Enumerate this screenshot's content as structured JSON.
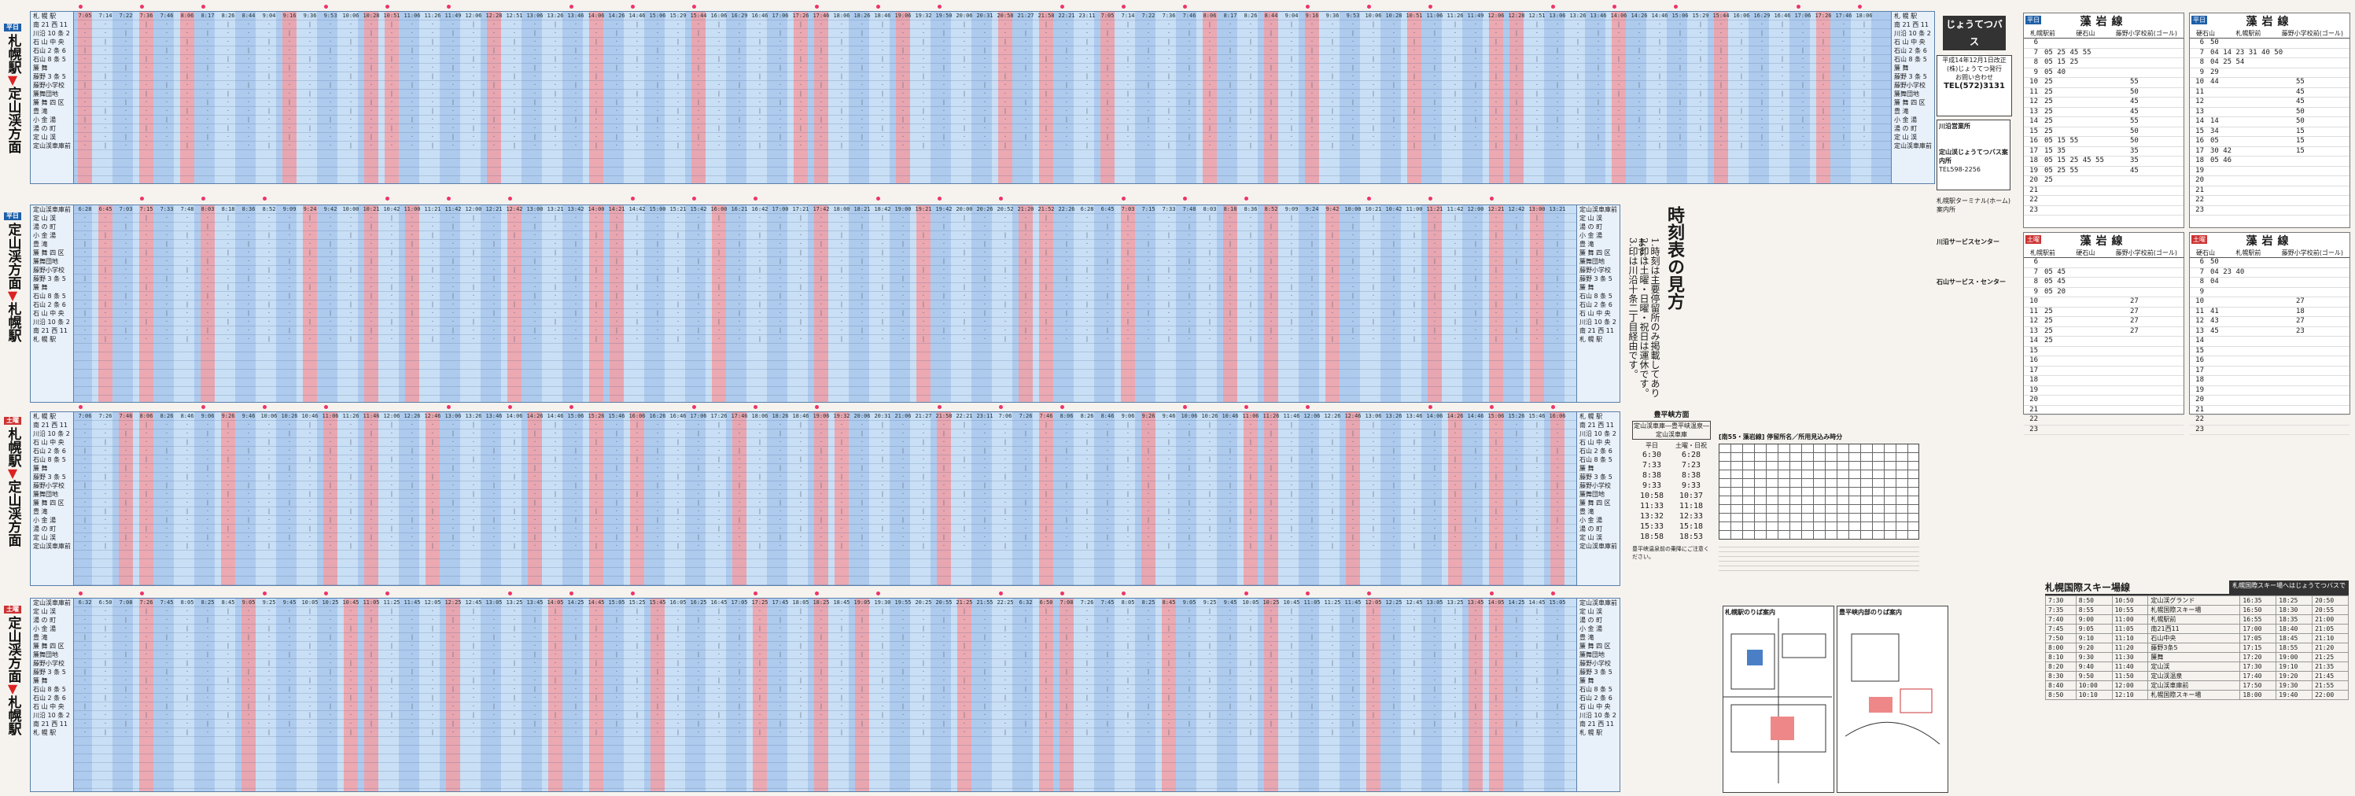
{
  "sections": {
    "s1": {
      "badge": "平日",
      "label_from": "札幌駅",
      "label_to": "定山渓方面",
      "stations": [
        "札 幌 駅",
        "南 21 西 11",
        "川沿 10 条 2",
        "石 山 中 央",
        "石山 2 条 6",
        "石山 8 条 5",
        "簾 舞",
        "藤野 3 条 5",
        "藤野小学校",
        "簾舞団地",
        "簾 舞 四 区",
        "豊 滝",
        "小 金 湯",
        "湯 の 町",
        "定 山 渓",
        "定山渓車庫前"
      ],
      "sample_times": [
        "7:05",
        "7:14",
        "7:22",
        "7:36",
        "7:46",
        "8:06",
        "8:17",
        "8:26",
        "8:44",
        "9:04",
        "9:16",
        "9:36",
        "9:53",
        "10:06",
        "10:28",
        "10:51",
        "11:06",
        "11:26",
        "11:49",
        "12:06",
        "12:28",
        "12:51",
        "13:06",
        "13:26",
        "13:46",
        "14:06",
        "14:26",
        "14:46",
        "15:06",
        "15:29",
        "15:44",
        "16:06",
        "16:29",
        "16:46",
        "17:06",
        "17:26",
        "17:46",
        "18:06",
        "18:26",
        "18:46",
        "19:06",
        "19:32",
        "19:50",
        "20:06",
        "20:31",
        "20:58",
        "21:27",
        "21:58",
        "22:21",
        "23:11"
      ]
    },
    "s2": {
      "badge": "平日",
      "label_from": "定山渓方面",
      "label_to": "札幌駅",
      "stations": [
        "定山渓車庫前",
        "定 山 渓",
        "湯 の 町",
        "小 金 湯",
        "豊 滝",
        "簾 舞 四 区",
        "簾舞団地",
        "藤野小学校",
        "藤野 3 条 5",
        "簾 舞",
        "石山 8 条 5",
        "石山 2 条 6",
        "石 山 中 央",
        "川沿 10 条 2",
        "南 21 西 11",
        "札 幌 駅"
      ],
      "sample_times": [
        "6:28",
        "6:45",
        "7:03",
        "7:15",
        "7:33",
        "7:48",
        "8:03",
        "8:18",
        "8:36",
        "8:52",
        "9:09",
        "9:24",
        "9:42",
        "10:00",
        "10:21",
        "10:42",
        "11:00",
        "11:21",
        "11:42",
        "12:00",
        "12:21",
        "12:42",
        "13:00",
        "13:21",
        "13:42",
        "14:00",
        "14:21",
        "14:42",
        "15:00",
        "15:21",
        "15:42",
        "16:00",
        "16:21",
        "16:42",
        "17:00",
        "17:21",
        "17:42",
        "18:00",
        "18:21",
        "18:42",
        "19:00",
        "19:21",
        "19:42",
        "20:00",
        "20:26",
        "20:52",
        "21:20",
        "21:52",
        "22:26"
      ]
    },
    "s3": {
      "badge": "土曜",
      "label_from": "札幌駅",
      "label_to": "定山渓方面",
      "stations": [
        "札 幌 駅",
        "南 21 西 11",
        "川沿 10 条 2",
        "石 山 中 央",
        "石山 2 条 6",
        "石山 8 条 5",
        "簾 舞",
        "藤野 3 条 5",
        "藤野小学校",
        "簾舞団地",
        "簾 舞 四 区",
        "豊 滝",
        "小 金 湯",
        "湯 の 町",
        "定 山 渓",
        "定山渓車庫前"
      ],
      "sample_times": [
        "7:06",
        "7:26",
        "7:46",
        "8:06",
        "8:26",
        "8:46",
        "9:06",
        "9:26",
        "9:46",
        "10:06",
        "10:26",
        "10:46",
        "11:06",
        "11:26",
        "11:46",
        "12:06",
        "12:26",
        "12:46",
        "13:06",
        "13:26",
        "13:46",
        "14:06",
        "14:26",
        "14:46",
        "15:06",
        "15:26",
        "15:46",
        "16:06",
        "16:26",
        "16:46",
        "17:06",
        "17:26",
        "17:46",
        "18:06",
        "18:26",
        "18:46",
        "19:06",
        "19:32",
        "20:06",
        "20:31",
        "21:06",
        "21:27",
        "21:58",
        "22:21",
        "23:11"
      ]
    },
    "s4": {
      "badge": "土曜",
      "label_from": "定山渓方面",
      "label_to": "札幌駅",
      "stations": [
        "定山渓車庫前",
        "定 山 渓",
        "湯 の 町",
        "小 金 湯",
        "豊 滝",
        "簾 舞 四 区",
        "簾舞団地",
        "藤野小学校",
        "藤野 3 条 5",
        "簾 舞",
        "石山 8 条 5",
        "石山 2 条 6",
        "石 山 中 央",
        "川沿 10 条 2",
        "南 21 西 11",
        "札 幌 駅"
      ],
      "sample_times": [
        "6:32",
        "6:50",
        "7:08",
        "7:26",
        "7:45",
        "8:05",
        "8:25",
        "8:45",
        "9:05",
        "9:25",
        "9:45",
        "10:05",
        "10:25",
        "10:45",
        "11:05",
        "11:25",
        "11:45",
        "12:05",
        "12:25",
        "12:45",
        "13:05",
        "13:25",
        "13:45",
        "14:05",
        "14:25",
        "14:45",
        "15:05",
        "15:25",
        "15:45",
        "16:05",
        "16:25",
        "16:45",
        "17:05",
        "17:25",
        "17:45",
        "18:05",
        "18:25",
        "18:45",
        "19:05",
        "19:30",
        "19:55",
        "20:25",
        "20:55",
        "21:25",
        "21:55",
        "22:25"
      ]
    }
  },
  "info": {
    "title_line1": "じょうてつバス",
    "title_line2": "時刻表",
    "issued": "平成14年12月1日改正",
    "company": "(株)じょうてつ発行",
    "contact": "お問い合わせ",
    "tel": "TEL(572)3131",
    "office1": "川沿営業所",
    "office2": "定山渓じょうてつバス案内所",
    "tel2": "TEL598-2256",
    "terminal": "札幌駅ターミナル(ホーム)案内所",
    "kawazoe": "川沿サービスセンター",
    "ishiyama": "石山サービス・センター"
  },
  "howto": {
    "heading": "時刻表の見方",
    "notes": [
      "1.時刻は主要停留所のみ掲載してあります。",
      "2.印は土曜・日曜・祝日は運休です。",
      "3.印は川沿十条二丁目経由です。"
    ]
  },
  "excursion": {
    "title": "豊平峡方面",
    "subtitle": "定山渓車庫―豊平峡温泉―定山渓車庫",
    "col1": "平日",
    "col2": "土曜・日祝",
    "rows": [
      [
        "6:30",
        "6:28"
      ],
      [
        "7:33",
        "7:23"
      ],
      [
        "8:38",
        "8:38"
      ],
      [
        "9:33",
        "9:33"
      ],
      [
        "10:58",
        "10:37"
      ],
      [
        "11:33",
        "11:18"
      ],
      [
        "13:32",
        "12:33"
      ],
      [
        "15:33",
        "15:18"
      ],
      [
        "18:58",
        "18:53"
      ]
    ],
    "note": "豊平峡温泉前の乗降にご注意ください。"
  },
  "fare": {
    "title": "[南55・藻岩線] 停留所名／所用見込み時分"
  },
  "moiwa": [
    {
      "badge": "平日",
      "title": "藻岩線",
      "col_a": "札幌駅前",
      "col_b": "藤野小学校前(ゴール)",
      "via": "硬石山",
      "rows": [
        [
          "6",
          ""
        ],
        [
          "7",
          "05 25 45 55"
        ],
        [
          "8",
          "05 15 25"
        ],
        [
          "9",
          "05 40"
        ],
        [
          "10",
          "25"
        ],
        [
          "11",
          "25"
        ],
        [
          "12",
          "25"
        ],
        [
          "13",
          "25"
        ],
        [
          "14",
          "25"
        ],
        [
          "15",
          "25"
        ],
        [
          "16",
          "05 15 55"
        ],
        [
          "17",
          "15 35"
        ],
        [
          "18",
          "05 15 25 45 55"
        ],
        [
          "19",
          "05 25 55"
        ],
        [
          "20",
          "25"
        ],
        [
          "21",
          ""
        ],
        [
          "22",
          ""
        ],
        [
          "23",
          ""
        ]
      ],
      "right": [
        "55",
        "50",
        "45",
        "45",
        "55",
        "50",
        "50",
        "35",
        "35",
        "45"
      ]
    },
    {
      "badge": "平日",
      "title": "藻岩線",
      "col_a": "硬石山",
      "col_b": "藤野小学校前(ゴール)",
      "via": "札幌駅前",
      "rows": [
        [
          "6",
          "50"
        ],
        [
          "7",
          "04 14 23 31 40 50"
        ],
        [
          "8",
          "04 25 54"
        ],
        [
          "9",
          "29"
        ],
        [
          "10",
          "44"
        ],
        [
          "11",
          ""
        ],
        [
          "12",
          ""
        ],
        [
          "13",
          ""
        ],
        [
          "14",
          "14"
        ],
        [
          "15",
          "34"
        ],
        [
          "16",
          "05"
        ],
        [
          "17",
          "30 42"
        ],
        [
          "18",
          "05 46"
        ],
        [
          "19",
          ""
        ],
        [
          "20",
          ""
        ],
        [
          "21",
          ""
        ],
        [
          "22",
          ""
        ],
        [
          "23",
          ""
        ]
      ],
      "right": [
        "55",
        "45",
        "45",
        "50",
        "50",
        "15",
        "15",
        "15"
      ]
    },
    {
      "badge": "土曜",
      "title": "藻岩線",
      "col_a": "札幌駅前",
      "col_b": "藤野小学校前(ゴール)",
      "via": "硬石山",
      "rows": [
        [
          "6",
          ""
        ],
        [
          "7",
          "05 45"
        ],
        [
          "8",
          "05 45"
        ],
        [
          "9",
          "05 20"
        ],
        [
          "10",
          ""
        ],
        [
          "11",
          "25"
        ],
        [
          "12",
          "25"
        ],
        [
          "13",
          "25"
        ],
        [
          "14",
          "25"
        ],
        [
          "15",
          ""
        ],
        [
          "16",
          ""
        ],
        [
          "17",
          ""
        ],
        [
          "18",
          ""
        ],
        [
          "19",
          ""
        ],
        [
          "20",
          ""
        ],
        [
          "21",
          ""
        ],
        [
          "22",
          ""
        ],
        [
          "23",
          ""
        ]
      ],
      "right": [
        "27",
        "27",
        "27",
        "27"
      ]
    },
    {
      "badge": "土曜",
      "title": "藻岩線",
      "col_a": "硬石山",
      "col_b": "藤野小学校前(ゴール)",
      "via": "札幌駅前",
      "rows": [
        [
          "6",
          "50"
        ],
        [
          "7",
          "04 23 40"
        ],
        [
          "8",
          "04"
        ],
        [
          "9",
          ""
        ],
        [
          "10",
          ""
        ],
        [
          "11",
          "41"
        ],
        [
          "12",
          "43"
        ],
        [
          "13",
          "45"
        ],
        [
          "14",
          ""
        ],
        [
          "15",
          ""
        ],
        [
          "16",
          ""
        ],
        [
          "17",
          ""
        ],
        [
          "18",
          ""
        ],
        [
          "19",
          ""
        ],
        [
          "20",
          ""
        ],
        [
          "21",
          ""
        ],
        [
          "22",
          ""
        ],
        [
          "23",
          ""
        ]
      ],
      "right": [
        "27",
        "18",
        "27",
        "23"
      ]
    }
  ],
  "ski": {
    "title": "札幌国際スキー場線",
    "note": "札幌国際スキー場へはじょうてつバスで",
    "rows": [
      [
        "7:30",
        "8:50",
        "10:50",
        "定山渓グランド",
        "16:35",
        "18:25",
        "20:50"
      ],
      [
        "7:35",
        "8:55",
        "10:55",
        "札幌国際スキー場",
        "16:50",
        "18:30",
        "20:55"
      ],
      [
        "7:40",
        "9:00",
        "11:00",
        "札幌駅前",
        "16:55",
        "18:35",
        "21:00"
      ],
      [
        "7:45",
        "9:05",
        "11:05",
        "南21西11",
        "17:00",
        "18:40",
        "21:05"
      ],
      [
        "7:50",
        "9:10",
        "11:10",
        "石山中央",
        "17:05",
        "18:45",
        "21:10"
      ],
      [
        "8:00",
        "9:20",
        "11:20",
        "藤野3条5",
        "17:15",
        "18:55",
        "21:20"
      ],
      [
        "8:10",
        "9:30",
        "11:30",
        "簾舞",
        "17:20",
        "19:00",
        "21:25"
      ],
      [
        "8:20",
        "9:40",
        "11:40",
        "定山渓",
        "17:30",
        "19:10",
        "21:35"
      ],
      [
        "8:30",
        "9:50",
        "11:50",
        "定山渓温泉",
        "17:40",
        "19:20",
        "21:45"
      ],
      [
        "8:40",
        "10:00",
        "12:00",
        "定山渓車庫前",
        "17:50",
        "19:30",
        "21:55"
      ],
      [
        "8:50",
        "10:10",
        "12:10",
        "札幌国際スキー場",
        "18:00",
        "19:40",
        "22:00"
      ]
    ]
  },
  "maps": {
    "map1": "札幌駅のりば案内",
    "map2": "豊平峡内部のりば案内"
  }
}
